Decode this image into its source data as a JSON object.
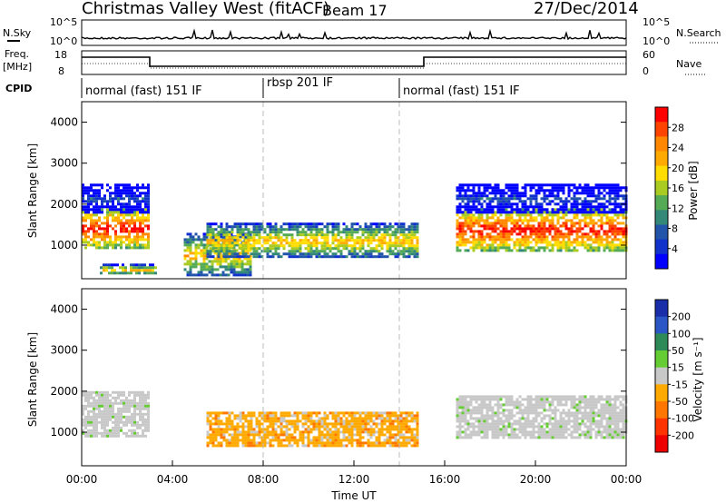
{
  "header": {
    "site": "Christmas Valley West (fitACF)",
    "beam": "Beam 17",
    "date": "27/Dec/2014"
  },
  "noise_panel": {
    "left_label": "N.Sky",
    "left_ticks": [
      "10^5",
      "10^0"
    ],
    "right_label": "N.Search",
    "right_ticks": [
      "10^5",
      "10^0"
    ]
  },
  "freq_panel": {
    "left_label_1": "Freq.",
    "left_label_2": "[MHz]",
    "left_ticks": [
      "18",
      "8"
    ],
    "right_label": "Nave",
    "right_ticks": [
      "60",
      "0"
    ]
  },
  "cpid": {
    "label": "CPID",
    "segments": [
      {
        "name": "normal (fast) 151 IF",
        "start_hr": 0,
        "end_hr": 8
      },
      {
        "name": "rbsp 201 IF",
        "start_hr": 8,
        "end_hr": 14
      },
      {
        "name": "normal (fast) 151 IF",
        "start_hr": 14,
        "end_hr": 24
      }
    ]
  },
  "power_panel": {
    "ylabel": "Slant Range [km]",
    "cbar_label": "Power [dB]",
    "cbar_ticks": [
      "28",
      "24",
      "20",
      "16",
      "12",
      "8",
      "4"
    ],
    "cbar_colors": [
      "#ff0000",
      "#ff4400",
      "#ff8800",
      "#ffaa00",
      "#ffdd00",
      "#aacc22",
      "#55aa55",
      "#338877",
      "#2255aa",
      "#1133cc",
      "#0000ff"
    ]
  },
  "velocity_panel": {
    "ylabel": "Slant Range [km]",
    "cbar_label": "Velocity [m s⁻¹]",
    "cbar_ticks": [
      "200",
      "100",
      "50",
      "15",
      "-15",
      "-50",
      "-100",
      "-200"
    ],
    "cbar_colors": [
      "#1a2eaa",
      "#2a56c6",
      "#2e8b57",
      "#66cc33",
      "#c8c8c8",
      "#ffaa00",
      "#ff7700",
      "#ff3300",
      "#ee0000"
    ]
  },
  "xaxis": {
    "label": "Time UT",
    "ticks": [
      "00:00",
      "04:00",
      "08:00",
      "12:00",
      "16:00",
      "20:00",
      "00:00"
    ]
  },
  "yaxis": {
    "ticks": [
      "1000",
      "2000",
      "3000",
      "4000"
    ]
  },
  "chart_data": {
    "type": "heatmap",
    "x_range_hours": [
      0,
      24
    ],
    "y_range_km": [
      180,
      4500
    ],
    "dashed_vlines_hours": [
      8,
      14
    ],
    "power_bands": [
      {
        "t0": 0.0,
        "t1": 2.9,
        "r0": 950,
        "r1": 1900,
        "level": "high"
      },
      {
        "t0": 0.0,
        "t1": 3.0,
        "r0": 1800,
        "r1": 2500,
        "level": "low"
      },
      {
        "t0": 0.8,
        "t1": 3.3,
        "r0": 300,
        "r1": 550,
        "level": "medium"
      },
      {
        "t0": 4.5,
        "t1": 7.5,
        "r0": 250,
        "r1": 1300,
        "level": "medium"
      },
      {
        "t0": 5.5,
        "t1": 14.8,
        "r0": 700,
        "r1": 1550,
        "level": "medium"
      },
      {
        "t0": 16.5,
        "t1": 24.0,
        "r0": 900,
        "r1": 1900,
        "level": "high"
      },
      {
        "t0": 16.5,
        "t1": 24.0,
        "r0": 1800,
        "r1": 2500,
        "level": "low"
      }
    ],
    "velocity_bands": [
      {
        "t0": 0.0,
        "t1": 3.0,
        "r0": 900,
        "r1": 2000,
        "class": "-15..15"
      },
      {
        "t0": 5.5,
        "t1": 14.8,
        "r0": 700,
        "r1": 1500,
        "class": "-50..-15"
      },
      {
        "t0": 16.5,
        "t1": 24.0,
        "r0": 900,
        "r1": 1900,
        "class": "-15..15"
      }
    ]
  }
}
